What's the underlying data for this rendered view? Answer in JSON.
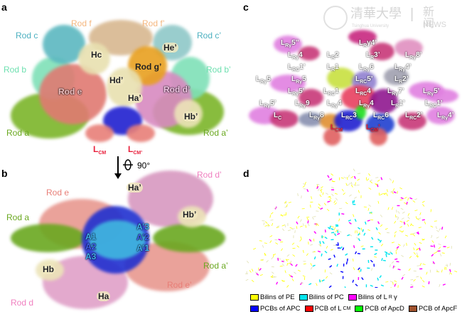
{
  "panels": {
    "a": "a",
    "b": "b",
    "c": "c",
    "d": "d"
  },
  "panel_a": {
    "labels": {
      "rod_f": "Rod f",
      "rod_f2": "Rod f’",
      "rod_c": "Rod c",
      "rod_c2": "Rod c’",
      "rod_b": "Rod b",
      "rod_b2": "Rod b’",
      "rod_e": "Rod e",
      "rod_d2": "Rod d’",
      "rod_g2": "Rod g’",
      "rod_a": "Rod a",
      "rod_a2": "Rod a’",
      "hc": "Hc",
      "he2": "He’",
      "hd2": "Hd’",
      "ha2": "Ha’",
      "hb2": "Hb’",
      "lcm": "L",
      "lcm_sub": "CM",
      "lcm2": "L",
      "lcm2_sub": "CM’"
    },
    "colors": {
      "rod_a": "#7cb52a",
      "rod_b": "#7fe0b8",
      "rod_c": "#5cb8c0",
      "rod_d": "#e88ac8",
      "rod_e": "#e87f78",
      "rod_f": "#f5c08a",
      "rod_g": "#e8a020",
      "core": "#2020d0",
      "lcm": "#e8203c"
    }
  },
  "rotation": {
    "angle": "90°"
  },
  "panel_b": {
    "labels": {
      "rod_d2": "Rod d’",
      "ha2": "Ha’",
      "rod_e": "Rod e",
      "hb2": "Hb’",
      "rod_a": "Rod a",
      "a1": "A1",
      "a2": "A2",
      "a3": "A3",
      "a3p": "A’3",
      "a2p": "A’2",
      "a1p": "A’1",
      "rod_a2": "Rod a’",
      "hb": "Hb",
      "rod_e2": "Rod e’",
      "rod_d": "Rod d",
      "ha": "Ha"
    }
  },
  "panel_c": {
    "watermark": {
      "text_cn": "清華大學",
      "divider": "|",
      "news_cn": "新闻",
      "news_en": "NEWS",
      "sub": "Tsinghua University"
    },
    "labels": [
      {
        "t": "L",
        "s": "Rγ",
        "n": "5’’"
      },
      {
        "t": "L",
        "s": "R",
        "n": "γ4’"
      },
      {
        "t": "L",
        "s": "R",
        "n": "3’"
      },
      {
        "t": "L",
        "s": "R",
        "n": "2"
      },
      {
        "t": "L",
        "s": "Rγ",
        "n": "4"
      },
      {
        "t": "L",
        "s": "Rγ",
        "n": "8’"
      },
      {
        "t": "L",
        "s": "R",
        "n": "1"
      },
      {
        "t": "L",
        "s": "RC",
        "n": "1’"
      },
      {
        "t": "L",
        "s": "Rγ",
        "n": "6"
      },
      {
        "t": "L",
        "s": "Rγ",
        "n": "4’"
      },
      {
        "t": "L",
        "s": "R",
        "n": "2’"
      },
      {
        "t": "L",
        "s": "Rγ",
        "n": "5"
      },
      {
        "t": "L",
        "s": "Rγ",
        "n": "5"
      },
      {
        "t": "L",
        "s": "RC",
        "n": "5’"
      },
      {
        "t": "L",
        "s": "RC",
        "n": "1"
      },
      {
        "t": "L",
        "s": "Rγ",
        "n": "5’"
      },
      {
        "t": "L",
        "s": "RC",
        "n": "4"
      },
      {
        "t": "L",
        "s": "Rγ",
        "n": "7’"
      },
      {
        "t": "L",
        "s": "Rγ",
        "n": "5’"
      },
      {
        "t": "L",
        "s": "Rγ",
        "n": "4"
      },
      {
        "t": "L",
        "s": "Rγ",
        "n": "9"
      },
      {
        "t": "L",
        "s": "Rγ",
        "n": "5’"
      },
      {
        "t": "L",
        "s": "Rγ",
        "n": "4"
      },
      {
        "t": "L",
        "s": "R",
        "n": "1’"
      },
      {
        "t": "L",
        "s": "RC",
        "n": "1’"
      },
      {
        "t": "L",
        "s": "RC",
        "n": "3"
      },
      {
        "t": "L",
        "s": "RC",
        "n": "6"
      },
      {
        "t": "L",
        "s": "RC",
        "n": "2’"
      },
      {
        "t": "L",
        "s": "Rγ",
        "n": "4’"
      },
      {
        "t": "L",
        "s": "Rγ",
        "n": "8"
      },
      {
        "t": "L",
        "s": "C",
        "n": ""
      },
      {
        "t": "L",
        "s": "CM",
        "n": ""
      },
      {
        "t": "L",
        "s": "CM",
        "n": "’"
      }
    ]
  },
  "panel_d": {
    "legend": [
      {
        "label": "Bilins of PE",
        "color": "#ffff00"
      },
      {
        "label": "Bilins of PC",
        "color": "#00e5ee"
      },
      {
        "label": "Bilins of L",
        "sub": "R",
        "suffix": "γ",
        "color": "#ff00ff"
      },
      {
        "label": "PCBs of APC",
        "color": "#0000ff"
      },
      {
        "label": "PCB of L",
        "sub": "CM",
        "color": "#ff0000"
      },
      {
        "label": "PCB of ApcD",
        "color": "#00ff00"
      },
      {
        "label": "PCB of ApcF",
        "color": "#a0522d"
      }
    ]
  }
}
